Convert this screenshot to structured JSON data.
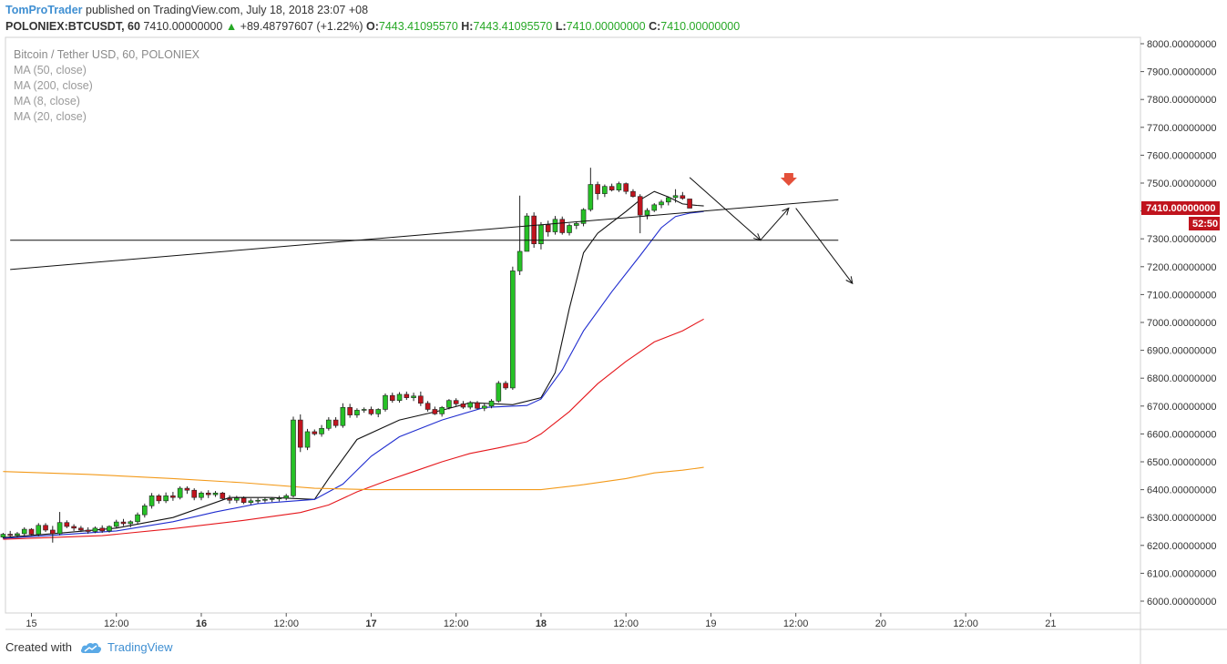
{
  "header": {
    "author": "TomProTrader",
    "published_text": "published on TradingView.com, July 18, 2018 23:07 +08"
  },
  "symbol_line": {
    "symbol": "POLONIEX:BTCUSDT, 60",
    "price": "7410.00000000",
    "change_arrow": "▲",
    "change": "+89.48797607 (+1.22%)",
    "open_label": "O:",
    "open": "7443.41095570",
    "high_label": "H:",
    "high": "7443.41095570",
    "low_label": "L:",
    "low": "7410.00000000",
    "close_label": "C:",
    "close": "7410.00000000"
  },
  "legend": {
    "title": "Bitcoin / Tether USD, 60, POLONIEX",
    "indicators": [
      "MA (50, close)",
      "MA (200, close)",
      "MA (8, close)",
      "MA (20, close)"
    ]
  },
  "footer": {
    "created_with": "Created with",
    "brand": "TradingView",
    "logo_icon": "tradingview-cloud-icon"
  },
  "colors": {
    "up": "#26c126",
    "down": "#c0141e",
    "ma8": "#111111",
    "ma20": "#1f2ccf",
    "ma50": "#e5161b",
    "ma200": "#f39a1a",
    "price_tag": "#c0141e",
    "sell_marker": "#e4503a"
  },
  "chart_data": {
    "type": "candlestick",
    "symbol": "POLONIEX:BTCUSDT",
    "interval": "60",
    "ylim": [
      5950,
      8050
    ],
    "yticks": [
      "8000.00000000",
      "7900.00000000",
      "7800.00000000",
      "7700.00000000",
      "7600.00000000",
      "7500.00000000",
      "7400.00000000",
      "7300.00000000",
      "7200.00000000",
      "7100.00000000",
      "7000.00000000",
      "6900.00000000",
      "6800.00000000",
      "6700.00000000",
      "6600.00000000",
      "6500.00000000",
      "6400.00000000",
      "6300.00000000",
      "6200.00000000",
      "6100.00000000",
      "6000.00000000"
    ],
    "ytick_values": [
      8000,
      7900,
      7800,
      7700,
      7600,
      7500,
      7400,
      7300,
      7200,
      7100,
      7000,
      6900,
      6800,
      6700,
      6600,
      6500,
      6400,
      6300,
      6200,
      6100,
      6000
    ],
    "xticks": [
      {
        "label": "15",
        "hour": 0
      },
      {
        "label": "12:00",
        "hour": 12
      },
      {
        "label": "16",
        "hour": 24
      },
      {
        "label": "12:00",
        "hour": 36
      },
      {
        "label": "17",
        "hour": 48
      },
      {
        "label": "12:00",
        "hour": 60
      },
      {
        "label": "18",
        "hour": 72
      },
      {
        "label": "12:00",
        "hour": 84
      },
      {
        "label": "19",
        "hour": 96
      },
      {
        "label": "12:00",
        "hour": 108
      },
      {
        "label": "20",
        "hour": 120
      },
      {
        "label": "12:00",
        "hour": 132
      },
      {
        "label": "21",
        "hour": 144
      }
    ],
    "bold_xticks": [
      "16",
      "17",
      "18"
    ],
    "candle_start_hour": -4,
    "candles": [
      [
        6230,
        6245,
        6225,
        6240
      ],
      [
        6240,
        6252,
        6232,
        6236
      ],
      [
        6236,
        6248,
        6228,
        6242
      ],
      [
        6242,
        6265,
        6235,
        6258
      ],
      [
        6258,
        6262,
        6235,
        6240
      ],
      [
        6240,
        6280,
        6232,
        6272
      ],
      [
        6272,
        6280,
        6248,
        6255
      ],
      [
        6255,
        6270,
        6210,
        6242
      ],
      [
        6242,
        6320,
        6236,
        6282
      ],
      [
        6282,
        6290,
        6262,
        6268
      ],
      [
        6268,
        6276,
        6252,
        6262
      ],
      [
        6262,
        6270,
        6248,
        6255
      ],
      [
        6255,
        6265,
        6242,
        6250
      ],
      [
        6250,
        6268,
        6244,
        6262
      ],
      [
        6262,
        6272,
        6245,
        6252
      ],
      [
        6252,
        6272,
        6246,
        6268
      ],
      [
        6268,
        6292,
        6262,
        6284
      ],
      [
        6284,
        6295,
        6270,
        6278
      ],
      [
        6278,
        6290,
        6265,
        6285
      ],
      [
        6285,
        6318,
        6278,
        6310
      ],
      [
        6310,
        6350,
        6300,
        6342
      ],
      [
        6342,
        6388,
        6332,
        6378
      ],
      [
        6378,
        6384,
        6350,
        6360
      ],
      [
        6360,
        6390,
        6352,
        6378
      ],
      [
        6378,
        6392,
        6360,
        6372
      ],
      [
        6372,
        6412,
        6365,
        6405
      ],
      [
        6405,
        6412,
        6385,
        6398
      ],
      [
        6398,
        6405,
        6362,
        6372
      ],
      [
        6372,
        6394,
        6362,
        6388
      ],
      [
        6388,
        6398,
        6370,
        6382
      ],
      [
        6382,
        6395,
        6374,
        6388
      ],
      [
        6388,
        6392,
        6362,
        6368
      ],
      [
        6368,
        6380,
        6350,
        6362
      ],
      [
        6362,
        6378,
        6352,
        6370
      ],
      [
        6370,
        6376,
        6348,
        6354
      ],
      [
        6354,
        6368,
        6346,
        6360
      ],
      [
        6360,
        6370,
        6350,
        6362
      ],
      [
        6362,
        6372,
        6354,
        6365
      ],
      [
        6365,
        6372,
        6356,
        6368
      ],
      [
        6368,
        6378,
        6358,
        6370
      ],
      [
        6370,
        6385,
        6362,
        6378
      ],
      [
        6378,
        6662,
        6372,
        6650
      ],
      [
        6650,
        6670,
        6535,
        6552
      ],
      [
        6552,
        6618,
        6542,
        6608
      ],
      [
        6608,
        6616,
        6594,
        6600
      ],
      [
        6600,
        6632,
        6590,
        6620
      ],
      [
        6620,
        6660,
        6612,
        6650
      ],
      [
        6650,
        6660,
        6622,
        6630
      ],
      [
        6630,
        6710,
        6622,
        6695
      ],
      [
        6695,
        6708,
        6658,
        6668
      ],
      [
        6668,
        6692,
        6658,
        6685
      ],
      [
        6685,
        6695,
        6676,
        6688
      ],
      [
        6688,
        6698,
        6666,
        6672
      ],
      [
        6672,
        6692,
        6660,
        6688
      ],
      [
        6688,
        6745,
        6680,
        6738
      ],
      [
        6738,
        6748,
        6712,
        6720
      ],
      [
        6720,
        6750,
        6712,
        6742
      ],
      [
        6742,
        6752,
        6722,
        6730
      ],
      [
        6730,
        6748,
        6718,
        6736
      ],
      [
        6736,
        6752,
        6700,
        6710
      ],
      [
        6710,
        6718,
        6680,
        6688
      ],
      [
        6688,
        6698,
        6668,
        6672
      ],
      [
        6672,
        6700,
        6662,
        6695
      ],
      [
        6695,
        6725,
        6688,
        6720
      ],
      [
        6720,
        6728,
        6700,
        6708
      ],
      [
        6708,
        6718,
        6690,
        6696
      ],
      [
        6696,
        6718,
        6688,
        6712
      ],
      [
        6712,
        6718,
        6688,
        6692
      ],
      [
        6692,
        6710,
        6682,
        6700
      ],
      [
        6700,
        6725,
        6692,
        6718
      ],
      [
        6718,
        6790,
        6712,
        6782
      ],
      [
        6782,
        6790,
        6758,
        6765
      ],
      [
        6765,
        7200,
        6758,
        7185
      ],
      [
        7185,
        7455,
        7170,
        7255
      ],
      [
        7255,
        7392,
        7255,
        7382
      ],
      [
        7382,
        7395,
        7268,
        7282
      ],
      [
        7282,
        7360,
        7262,
        7350
      ],
      [
        7350,
        7365,
        7308,
        7325
      ],
      [
        7325,
        7382,
        7315,
        7370
      ],
      [
        7370,
        7380,
        7315,
        7322
      ],
      [
        7322,
        7355,
        7312,
        7348
      ],
      [
        7348,
        7362,
        7335,
        7355
      ],
      [
        7355,
        7410,
        7345,
        7405
      ],
      [
        7405,
        7555,
        7398,
        7495
      ],
      [
        7495,
        7505,
        7440,
        7462
      ],
      [
        7462,
        7495,
        7450,
        7488
      ],
      [
        7488,
        7498,
        7470,
        7475
      ],
      [
        7475,
        7505,
        7468,
        7498
      ],
      [
        7498,
        7502,
        7460,
        7470
      ],
      [
        7470,
        7478,
        7448,
        7452
      ],
      [
        7452,
        7460,
        7320,
        7385
      ],
      [
        7385,
        7410,
        7370,
        7402
      ],
      [
        7402,
        7428,
        7396,
        7422
      ],
      [
        7422,
        7440,
        7410,
        7432
      ],
      [
        7432,
        7452,
        7420,
        7448
      ],
      [
        7448,
        7478,
        7430,
        7455
      ],
      [
        7455,
        7468,
        7440,
        7445
      ],
      [
        7443,
        7443,
        7410,
        7410
      ]
    ],
    "moving_averages": [
      {
        "name": "MA (8, close)",
        "color_key": "ma8",
        "points": [
          [
            -4,
            6228
          ],
          [
            4,
            6244
          ],
          [
            12,
            6262
          ],
          [
            20,
            6300
          ],
          [
            28,
            6372
          ],
          [
            34,
            6372
          ],
          [
            40,
            6365
          ],
          [
            42,
            6440
          ],
          [
            46,
            6580
          ],
          [
            52,
            6650
          ],
          [
            58,
            6685
          ],
          [
            62,
            6712
          ],
          [
            68,
            6705
          ],
          [
            72,
            6730
          ],
          [
            74,
            6820
          ],
          [
            76,
            7050
          ],
          [
            78,
            7250
          ],
          [
            80,
            7320
          ],
          [
            84,
            7398
          ],
          [
            86,
            7440
          ],
          [
            88,
            7470
          ],
          [
            90,
            7450
          ],
          [
            92,
            7425
          ],
          [
            94,
            7420
          ],
          [
            95,
            7418
          ]
        ]
      },
      {
        "name": "MA (20, close)",
        "color_key": "ma20",
        "points": [
          [
            -4,
            6225
          ],
          [
            4,
            6238
          ],
          [
            12,
            6252
          ],
          [
            20,
            6285
          ],
          [
            26,
            6320
          ],
          [
            32,
            6350
          ],
          [
            40,
            6365
          ],
          [
            44,
            6420
          ],
          [
            48,
            6520
          ],
          [
            52,
            6590
          ],
          [
            58,
            6650
          ],
          [
            64,
            6695
          ],
          [
            70,
            6702
          ],
          [
            72,
            6725
          ],
          [
            75,
            6830
          ],
          [
            78,
            6970
          ],
          [
            82,
            7110
          ],
          [
            86,
            7240
          ],
          [
            89,
            7340
          ],
          [
            91,
            7380
          ],
          [
            93,
            7392
          ],
          [
            95,
            7398
          ]
        ]
      },
      {
        "name": "MA (50, close)",
        "color_key": "ma50",
        "points": [
          [
            -4,
            6222
          ],
          [
            10,
            6235
          ],
          [
            20,
            6260
          ],
          [
            30,
            6290
          ],
          [
            38,
            6318
          ],
          [
            42,
            6345
          ],
          [
            46,
            6392
          ],
          [
            50,
            6430
          ],
          [
            54,
            6465
          ],
          [
            58,
            6500
          ],
          [
            62,
            6530
          ],
          [
            66,
            6550
          ],
          [
            70,
            6572
          ],
          [
            72,
            6600
          ],
          [
            76,
            6680
          ],
          [
            80,
            6780
          ],
          [
            84,
            6860
          ],
          [
            88,
            6930
          ],
          [
            92,
            6970
          ],
          [
            95,
            7012
          ]
        ]
      },
      {
        "name": "MA (200, close)",
        "color_key": "ma200",
        "points": [
          [
            -4,
            6465
          ],
          [
            8,
            6455
          ],
          [
            20,
            6440
          ],
          [
            30,
            6425
          ],
          [
            40,
            6405
          ],
          [
            48,
            6400
          ],
          [
            60,
            6400
          ],
          [
            72,
            6400
          ],
          [
            78,
            6418
          ],
          [
            84,
            6440
          ],
          [
            88,
            6460
          ],
          [
            92,
            6470
          ],
          [
            95,
            6480
          ]
        ]
      }
    ],
    "annotations": {
      "trendline": [
        [
          -3,
          7190
        ],
        [
          114,
          7440
        ]
      ],
      "horizontal_line": [
        [
          -3,
          7295
        ],
        [
          114,
          7295
        ]
      ],
      "arrows": [
        [
          [
            93,
            7520
          ],
          [
            103,
            7295
          ]
        ],
        [
          [
            103,
            7295
          ],
          [
            107,
            7410
          ]
        ],
        [
          [
            108,
            7410
          ],
          [
            116,
            7140
          ]
        ]
      ],
      "sell_marker_at": [
        107,
        7510
      ]
    },
    "last_price_label": "7410.00000000",
    "last_price": 7410,
    "countdown": "52:50"
  }
}
